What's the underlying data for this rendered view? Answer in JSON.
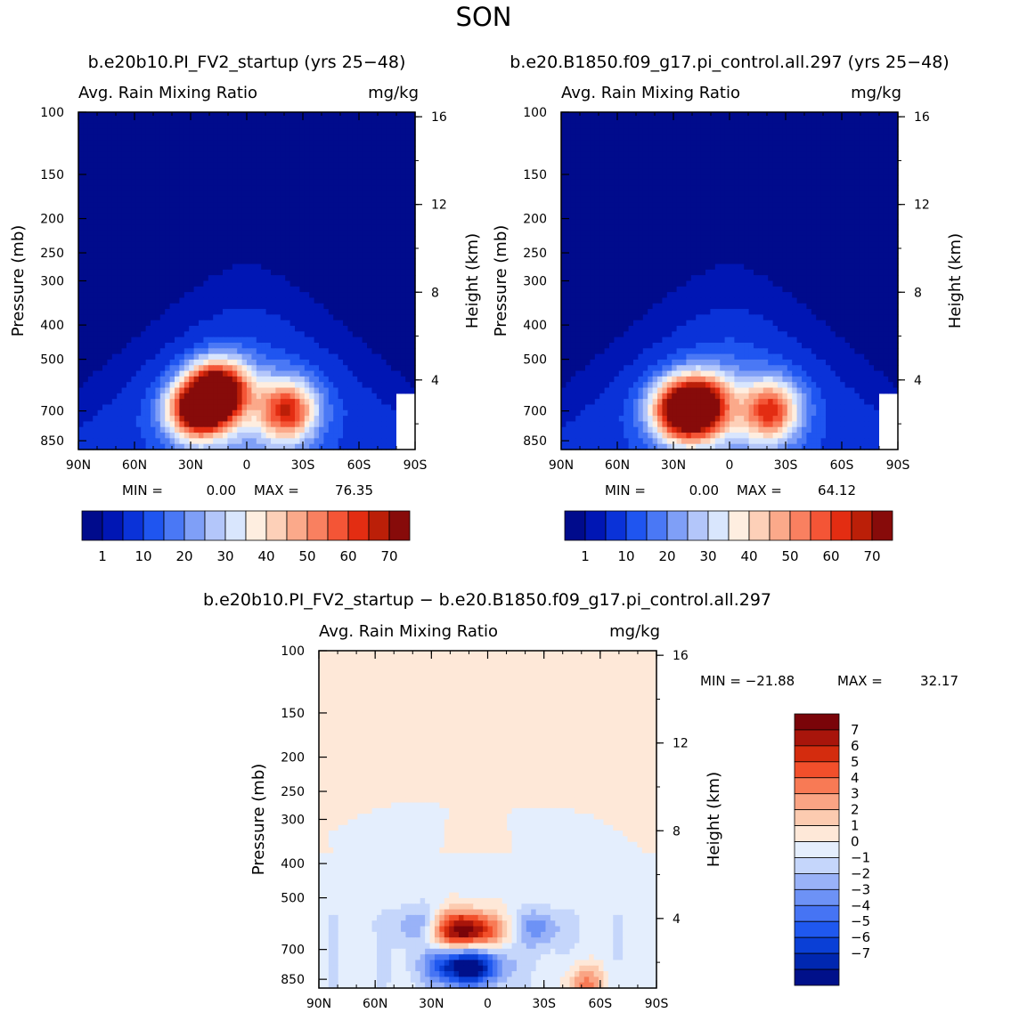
{
  "page": {
    "title": "SON"
  },
  "colors": {
    "seq": [
      "#000b8c",
      "#0016b4",
      "#0a32d8",
      "#1f55f0",
      "#4a78f5",
      "#7f9ff7",
      "#b3c6fa",
      "#d9e6fd",
      "#feeee0",
      "#fdd0b8",
      "#fba98a",
      "#f98060",
      "#f45536",
      "#e32d12",
      "#bb1f08",
      "#870b0a"
    ],
    "div": [
      "#00108a",
      "#0027b0",
      "#0a3fd6",
      "#1f58ef",
      "#4674f4",
      "#6d92f6",
      "#99b2f8",
      "#c5d6fb",
      "#e4eefd",
      "#fee8d8",
      "#fccbb0",
      "#faa484",
      "#f87a55",
      "#f24f2b",
      "#d42c0e",
      "#a8150b",
      "#7a0409"
    ]
  },
  "chart_data": [
    {
      "type": "heatmap",
      "title": "b.e20b10.PI_FV2_startup (yrs 25−48)",
      "left_label": "Avg. Rain Mixing Ratio",
      "right_label": "mg/kg",
      "xlabel": "",
      "ylabel": "Pressure (mb)",
      "ylabel_right": "Height (km)",
      "x_ticks": [
        "90N",
        "60N",
        "30N",
        "0",
        "30S",
        "60S",
        "90S"
      ],
      "y_ticks": [
        "100",
        "150",
        "200",
        "250",
        "300",
        "400",
        "500",
        "700",
        "850"
      ],
      "y_ticks_right": [
        "16",
        "12",
        "8",
        "4"
      ],
      "ylim": [
        100,
        900
      ],
      "log_y": true,
      "stats": {
        "min_label": "MIN =",
        "min": "0.00",
        "max_label": "MAX =",
        "max": "76.35"
      },
      "colorbar": {
        "orientation": "horizontal",
        "tick_labels": [
          "1",
          "10",
          "20",
          "30",
          "40",
          "50",
          "60",
          "70"
        ],
        "nbins": 16
      },
      "features": [
        {
          "lat": 15,
          "p": 620,
          "peak": 76
        },
        {
          "lat": 28,
          "p": 700,
          "peak": 60
        },
        {
          "lat": -22,
          "p": 700,
          "peak": 52
        }
      ]
    },
    {
      "type": "heatmap",
      "title": "b.e20.B1850.f09_g17.pi_control.all.297 (yrs 25−48)",
      "left_label": "Avg. Rain Mixing Ratio",
      "right_label": "mg/kg",
      "xlabel": "",
      "ylabel": "Pressure (mb)",
      "ylabel_right": "Height (km)",
      "x_ticks": [
        "90N",
        "60N",
        "30N",
        "0",
        "30S",
        "60S",
        "90S"
      ],
      "y_ticks": [
        "100",
        "150",
        "200",
        "250",
        "300",
        "400",
        "500",
        "700",
        "850"
      ],
      "y_ticks_right": [
        "16",
        "12",
        "8",
        "4"
      ],
      "ylim": [
        100,
        900
      ],
      "log_y": true,
      "stats": {
        "min_label": "MIN =",
        "min": "0.00",
        "max_label": "MAX =",
        "max": "64.12"
      },
      "colorbar": {
        "orientation": "horizontal",
        "tick_labels": [
          "1",
          "10",
          "20",
          "30",
          "40",
          "50",
          "60",
          "70"
        ],
        "nbins": 16
      },
      "features": [
        {
          "lat": 15,
          "p": 680,
          "peak": 64
        },
        {
          "lat": 28,
          "p": 700,
          "peak": 55
        },
        {
          "lat": -22,
          "p": 700,
          "peak": 50
        }
      ]
    },
    {
      "type": "heatmap",
      "title": "b.e20b10.PI_FV2_startup − b.e20.B1850.f09_g17.pi_control.all.297",
      "left_label": "Avg. Rain Mixing Ratio",
      "right_label": "mg/kg",
      "xlabel": "",
      "ylabel": "Pressure (mb)",
      "ylabel_right": "Height (km)",
      "x_ticks": [
        "90N",
        "60N",
        "30N",
        "0",
        "30S",
        "60S",
        "90S"
      ],
      "y_ticks": [
        "100",
        "150",
        "200",
        "250",
        "300",
        "400",
        "500",
        "700",
        "850"
      ],
      "y_ticks_right": [
        "16",
        "12",
        "8",
        "4"
      ],
      "ylim": [
        100,
        900
      ],
      "log_y": true,
      "stats": {
        "min_label": "MIN = −21.88",
        "max_label": "MAX =",
        "max": "32.17"
      },
      "colorbar": {
        "orientation": "vertical",
        "tick_labels": [
          "7",
          "6",
          "5",
          "4",
          "3",
          "2",
          "1",
          "0",
          "−1",
          "−2",
          "−3",
          "−4",
          "−5",
          "−6",
          "−7"
        ],
        "nbins": 17
      },
      "features": [
        {
          "lat": 12,
          "p": 620,
          "value": 9
        },
        {
          "lat": 12,
          "p": 780,
          "value": -9
        },
        {
          "lat": 38,
          "p": 600,
          "value": -3
        },
        {
          "lat": -27,
          "p": 610,
          "value": -3
        },
        {
          "lat": -52,
          "p": 880,
          "value": 4
        }
      ]
    }
  ]
}
